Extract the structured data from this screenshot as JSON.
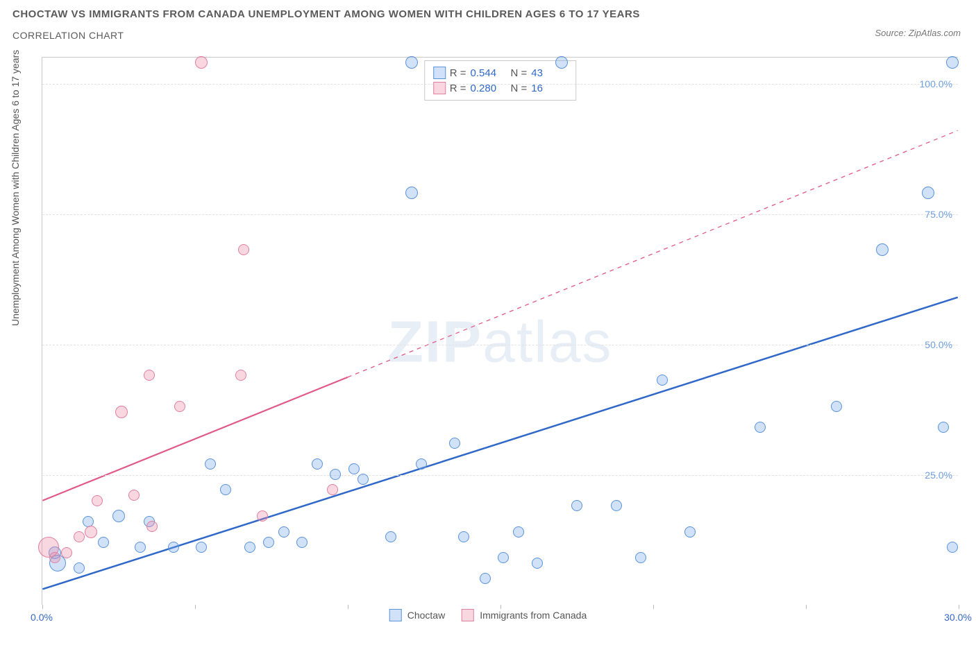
{
  "title_line1": "CHOCTAW VS IMMIGRANTS FROM CANADA UNEMPLOYMENT AMONG WOMEN WITH CHILDREN AGES 6 TO 17 YEARS",
  "title_line2": "CORRELATION CHART",
  "source_label": "Source: ZipAtlas.com",
  "y_axis_label": "Unemployment Among Women with Children Ages 6 to 17 years",
  "watermark_bold": "ZIP",
  "watermark_light": "atlas",
  "chart": {
    "type": "scatter",
    "xlim": [
      0,
      30
    ],
    "ylim": [
      0,
      105
    ],
    "x_ticks": [
      0,
      5,
      10,
      15,
      20,
      25,
      30
    ],
    "x_tick_labels": {
      "0": "0.0%",
      "30": "30.0%"
    },
    "y_ticks": [
      25,
      50,
      75,
      100
    ],
    "y_tick_labels": {
      "25": "25.0%",
      "50": "50.0%",
      "75": "75.0%",
      "100": "100.0%"
    },
    "y_tick_color": "#6f9fe0",
    "x_tick_color": "#3268c9",
    "grid_color": "#e2e2e2",
    "background_color": "#ffffff",
    "series": [
      {
        "name": "Choctaw",
        "color_fill": "rgba(120,170,235,0.35)",
        "color_stroke": "#5a93d8",
        "marker_radius_base": 8,
        "trend": {
          "x1": 0,
          "y1": 3,
          "x2": 30,
          "y2": 59,
          "color": "#2f68c8",
          "width": 2.5,
          "dash": "none"
        },
        "points": [
          {
            "x": 0.4,
            "y": 10,
            "r": 9
          },
          {
            "x": 0.5,
            "y": 8,
            "r": 12
          },
          {
            "x": 1.2,
            "y": 7,
            "r": 8
          },
          {
            "x": 1.5,
            "y": 16,
            "r": 8
          },
          {
            "x": 2.0,
            "y": 12,
            "r": 8
          },
          {
            "x": 2.5,
            "y": 17,
            "r": 9
          },
          {
            "x": 3.2,
            "y": 11,
            "r": 8
          },
          {
            "x": 3.5,
            "y": 16,
            "r": 8
          },
          {
            "x": 4.3,
            "y": 11,
            "r": 8
          },
          {
            "x": 5.2,
            "y": 11,
            "r": 8
          },
          {
            "x": 5.5,
            "y": 27,
            "r": 8
          },
          {
            "x": 6.0,
            "y": 22,
            "r": 8
          },
          {
            "x": 6.8,
            "y": 11,
            "r": 8
          },
          {
            "x": 7.4,
            "y": 12,
            "r": 8
          },
          {
            "x": 7.9,
            "y": 14,
            "r": 8
          },
          {
            "x": 8.5,
            "y": 12,
            "r": 8
          },
          {
            "x": 9.0,
            "y": 27,
            "r": 8
          },
          {
            "x": 9.6,
            "y": 25,
            "r": 8
          },
          {
            "x": 10.2,
            "y": 26,
            "r": 8
          },
          {
            "x": 10.5,
            "y": 24,
            "r": 8
          },
          {
            "x": 11.4,
            "y": 13,
            "r": 8
          },
          {
            "x": 12.1,
            "y": 79,
            "r": 9
          },
          {
            "x": 12.1,
            "y": 104,
            "r": 9
          },
          {
            "x": 12.4,
            "y": 27,
            "r": 8
          },
          {
            "x": 13.5,
            "y": 31,
            "r": 8
          },
          {
            "x": 13.8,
            "y": 13,
            "r": 8
          },
          {
            "x": 14.5,
            "y": 5,
            "r": 8
          },
          {
            "x": 15.1,
            "y": 9,
            "r": 8
          },
          {
            "x": 15.6,
            "y": 14,
            "r": 8
          },
          {
            "x": 16.2,
            "y": 8,
            "r": 8
          },
          {
            "x": 17.0,
            "y": 104,
            "r": 9
          },
          {
            "x": 17.5,
            "y": 19,
            "r": 8
          },
          {
            "x": 18.8,
            "y": 19,
            "r": 8
          },
          {
            "x": 19.6,
            "y": 9,
            "r": 8
          },
          {
            "x": 20.3,
            "y": 43,
            "r": 8
          },
          {
            "x": 21.2,
            "y": 14,
            "r": 8
          },
          {
            "x": 23.5,
            "y": 34,
            "r": 8
          },
          {
            "x": 26.0,
            "y": 38,
            "r": 8
          },
          {
            "x": 27.5,
            "y": 68,
            "r": 9
          },
          {
            "x": 29.0,
            "y": 79,
            "r": 9
          },
          {
            "x": 29.5,
            "y": 34,
            "r": 8
          },
          {
            "x": 29.8,
            "y": 104,
            "r": 9
          },
          {
            "x": 29.8,
            "y": 11,
            "r": 8
          }
        ]
      },
      {
        "name": "Immigrants from Canada",
        "color_fill": "rgba(238,140,170,0.35)",
        "color_stroke": "#e07fa0",
        "marker_radius_base": 8,
        "trend": {
          "x1": 0,
          "y1": 20,
          "x2": 30,
          "y2": 91,
          "color": "#e15a87",
          "width": 2.2,
          "dash": "none",
          "dash_after_x": 10
        },
        "points": [
          {
            "x": 0.2,
            "y": 11,
            "r": 15
          },
          {
            "x": 0.4,
            "y": 9,
            "r": 8
          },
          {
            "x": 0.8,
            "y": 10,
            "r": 8
          },
          {
            "x": 1.2,
            "y": 13,
            "r": 8
          },
          {
            "x": 1.6,
            "y": 14,
            "r": 9
          },
          {
            "x": 1.8,
            "y": 20,
            "r": 8
          },
          {
            "x": 2.6,
            "y": 37,
            "r": 9
          },
          {
            "x": 3.0,
            "y": 21,
            "r": 8
          },
          {
            "x": 3.5,
            "y": 44,
            "r": 8
          },
          {
            "x": 3.6,
            "y": 15,
            "r": 8
          },
          {
            "x": 4.5,
            "y": 38,
            "r": 8
          },
          {
            "x": 5.2,
            "y": 104,
            "r": 9
          },
          {
            "x": 6.5,
            "y": 44,
            "r": 8
          },
          {
            "x": 6.6,
            "y": 68,
            "r": 8
          },
          {
            "x": 7.2,
            "y": 17,
            "r": 8
          },
          {
            "x": 9.5,
            "y": 22,
            "r": 8
          }
        ]
      }
    ]
  },
  "legend_top": [
    {
      "swatch_fill": "rgba(120,170,235,0.35)",
      "swatch_stroke": "#5a93d8",
      "r_label": "R =",
      "r_value": "0.544",
      "n_label": "N =",
      "n_value": "43",
      "value_color": "#2f68c8"
    },
    {
      "swatch_fill": "rgba(238,140,170,0.35)",
      "swatch_stroke": "#e07fa0",
      "r_label": "R =",
      "r_value": "0.280",
      "n_label": "N =",
      "n_value": "16",
      "value_color": "#2f68c8"
    }
  ],
  "legend_bottom": [
    {
      "swatch_fill": "rgba(120,170,235,0.35)",
      "swatch_stroke": "#5a93d8",
      "label": "Choctaw"
    },
    {
      "swatch_fill": "rgba(238,140,170,0.35)",
      "swatch_stroke": "#e07fa0",
      "label": "Immigrants from Canada"
    }
  ]
}
